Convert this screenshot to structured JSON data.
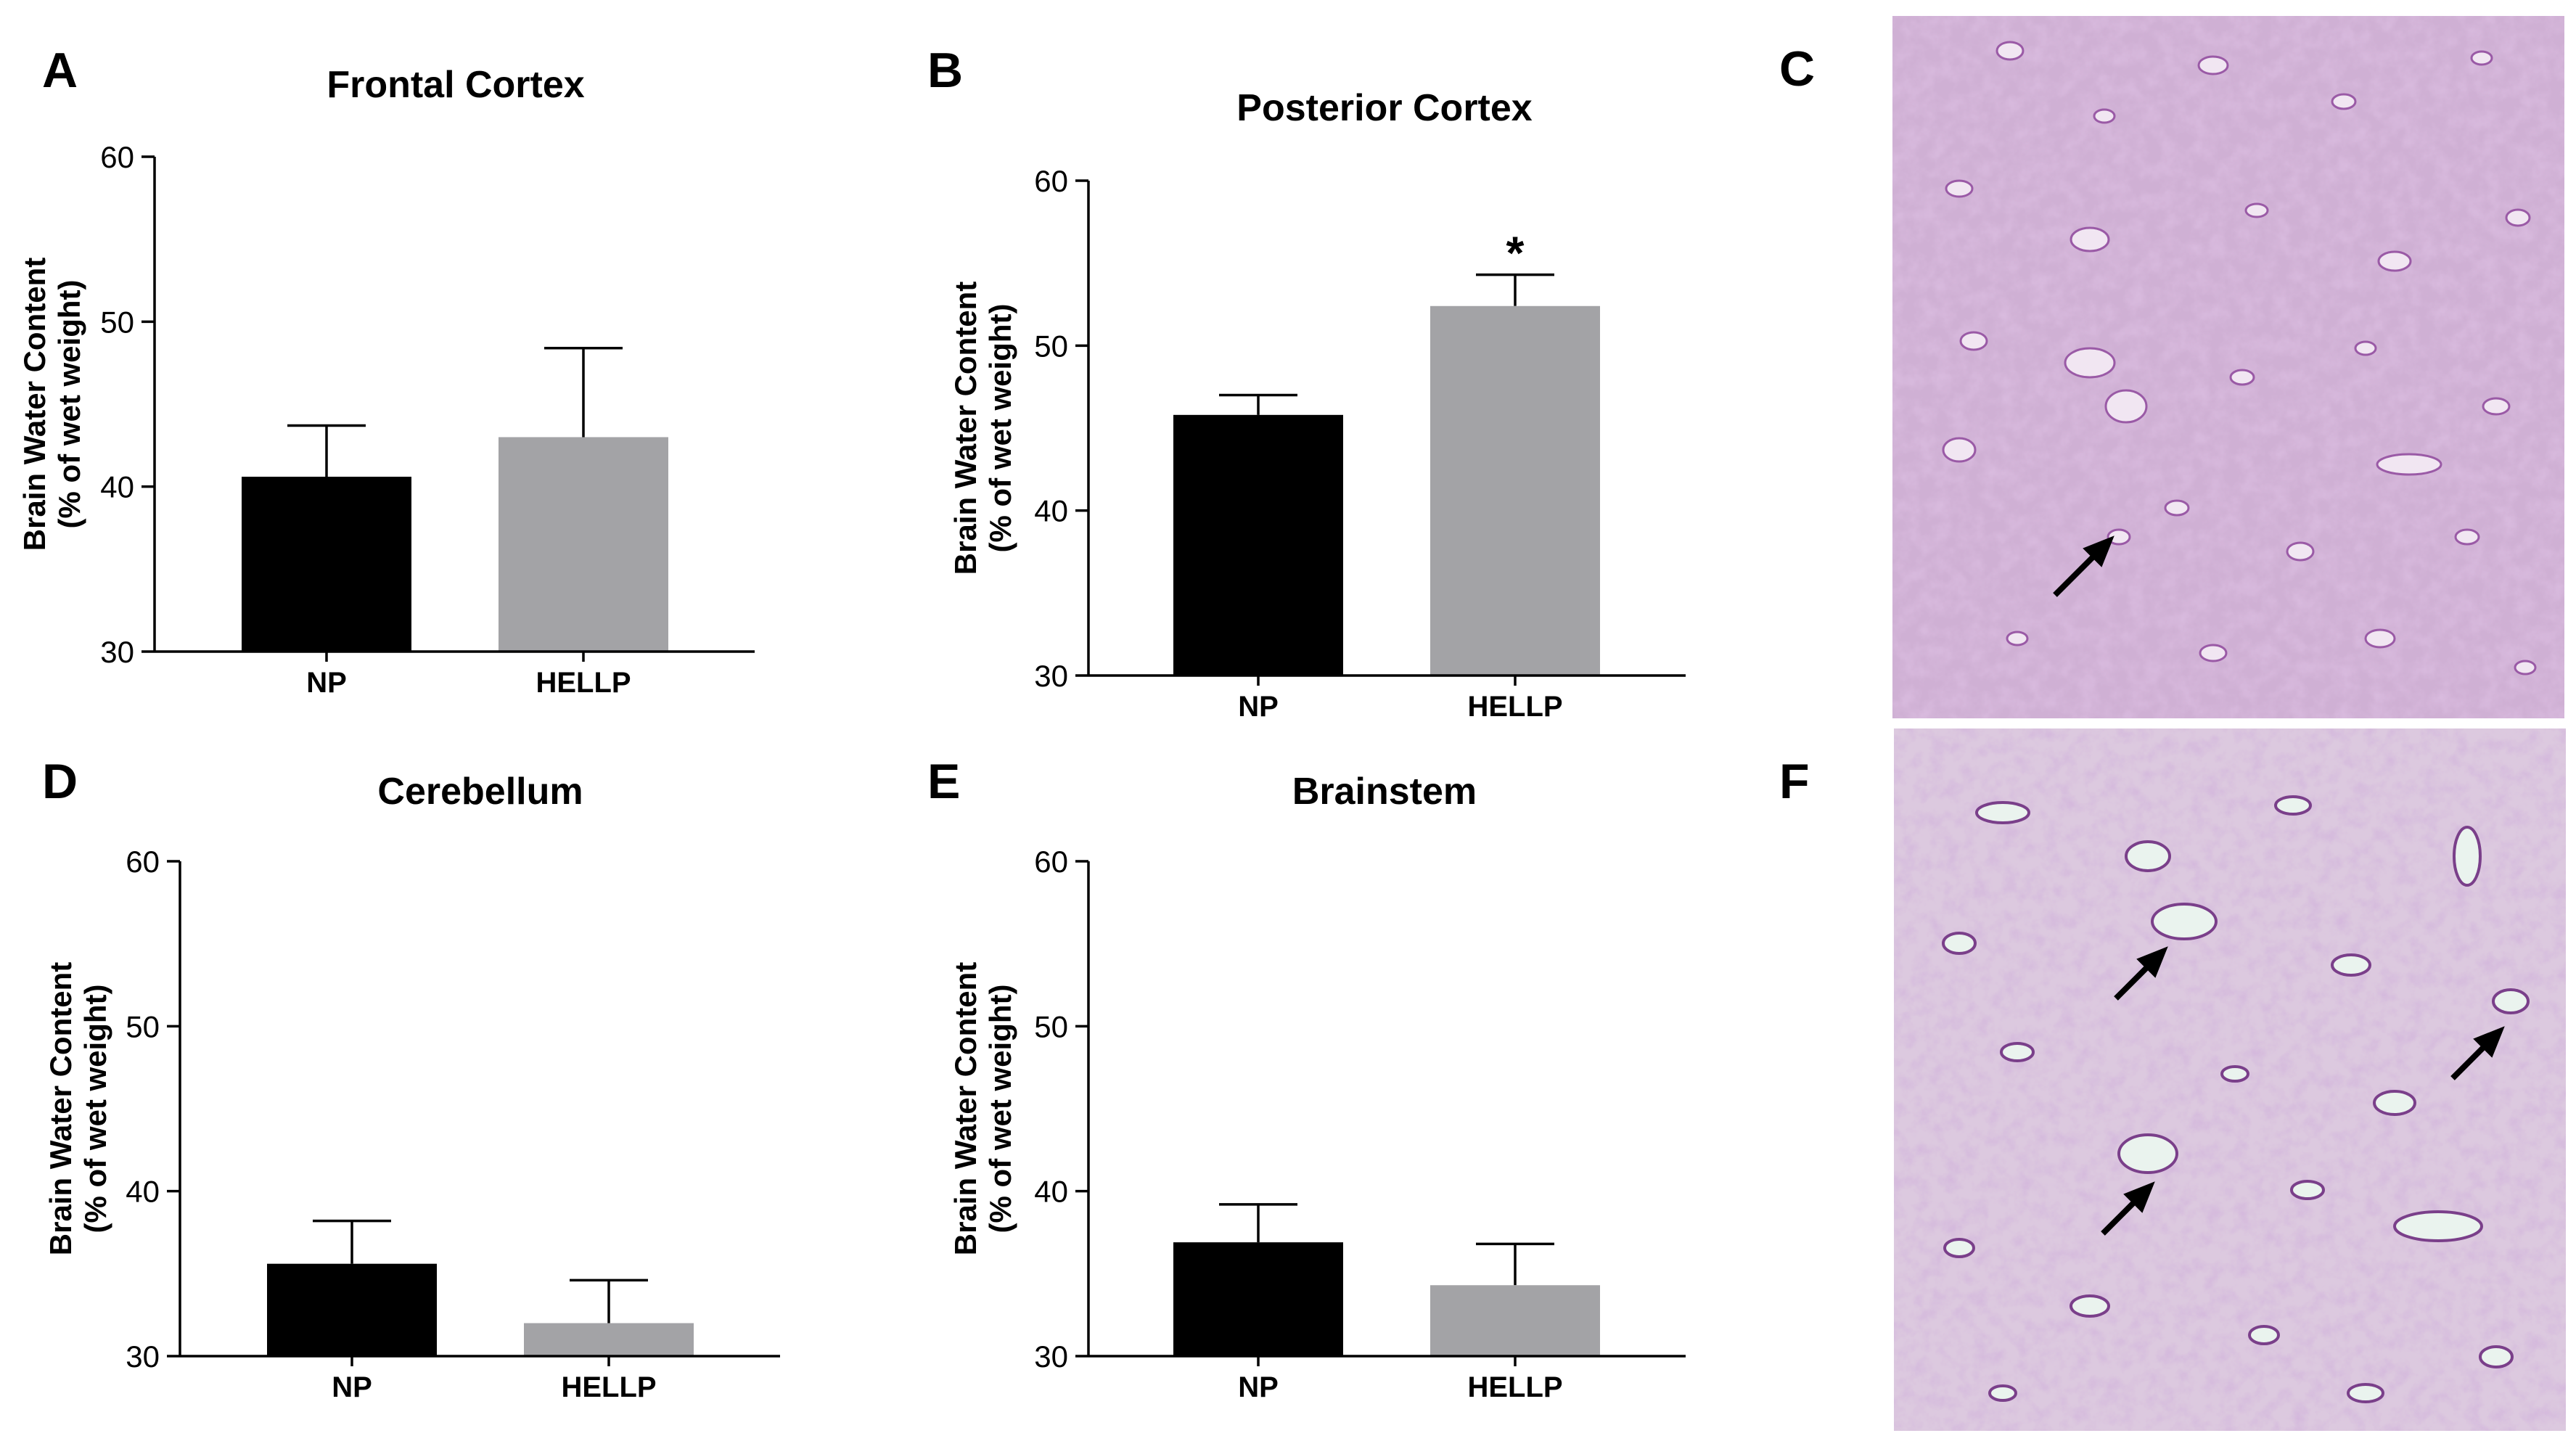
{
  "colors": {
    "np_bar": "#000000",
    "hellp_bar": "#a3a3a6",
    "tissue_bg": "#c9a4cd",
    "tissue_light": "#e4d4e7",
    "tissue_dark": "#7a3f8a",
    "tissue_green_tint": "#dfe9e3"
  },
  "histology": [
    {
      "panel": "C",
      "description_icon": "he-stain-tissue-normal",
      "arrows": 1
    },
    {
      "panel": "F",
      "description_icon": "he-stain-tissue-edema",
      "arrows": 3
    }
  ],
  "chart_data": [
    {
      "panel": "A",
      "type": "bar",
      "title": "Frontal Cortex",
      "ylabel_line1": "Brain Water Content",
      "ylabel_line2": "(% of wet weight)",
      "ylim": [
        30,
        60
      ],
      "yticks": [
        30,
        40,
        50,
        60
      ],
      "categories": [
        "NP",
        "HELLP"
      ],
      "values": [
        40.6,
        43.0
      ],
      "errors": [
        3.1,
        5.4
      ],
      "significance": [
        "",
        ""
      ]
    },
    {
      "panel": "B",
      "type": "bar",
      "title": "Posterior Cortex",
      "ylabel_line1": "Brain Water Content",
      "ylabel_line2": "(% of wet weight)",
      "ylim": [
        30,
        60
      ],
      "yticks": [
        30,
        40,
        50,
        60
      ],
      "categories": [
        "NP",
        "HELLP"
      ],
      "values": [
        45.8,
        52.4
      ],
      "errors": [
        1.2,
        1.9
      ],
      "significance": [
        "",
        "*"
      ]
    },
    {
      "panel": "D",
      "type": "bar",
      "title": "Cerebellum",
      "ylabel_line1": "Brain Water Content",
      "ylabel_line2": "(% of wet weight)",
      "ylim": [
        30,
        60
      ],
      "yticks": [
        30,
        40,
        50,
        60
      ],
      "categories": [
        "NP",
        "HELLP"
      ],
      "values": [
        35.6,
        32.0
      ],
      "errors": [
        2.6,
        2.6
      ],
      "significance": [
        "",
        ""
      ]
    },
    {
      "panel": "E",
      "type": "bar",
      "title": "Brainstem",
      "ylabel_line1": "Brain Water Content",
      "ylabel_line2": "(% of wet weight)",
      "ylim": [
        30,
        60
      ],
      "yticks": [
        30,
        40,
        50,
        60
      ],
      "categories": [
        "NP",
        "HELLP"
      ],
      "values": [
        36.9,
        34.3
      ],
      "errors": [
        2.3,
        2.5
      ],
      "significance": [
        "",
        ""
      ]
    }
  ]
}
